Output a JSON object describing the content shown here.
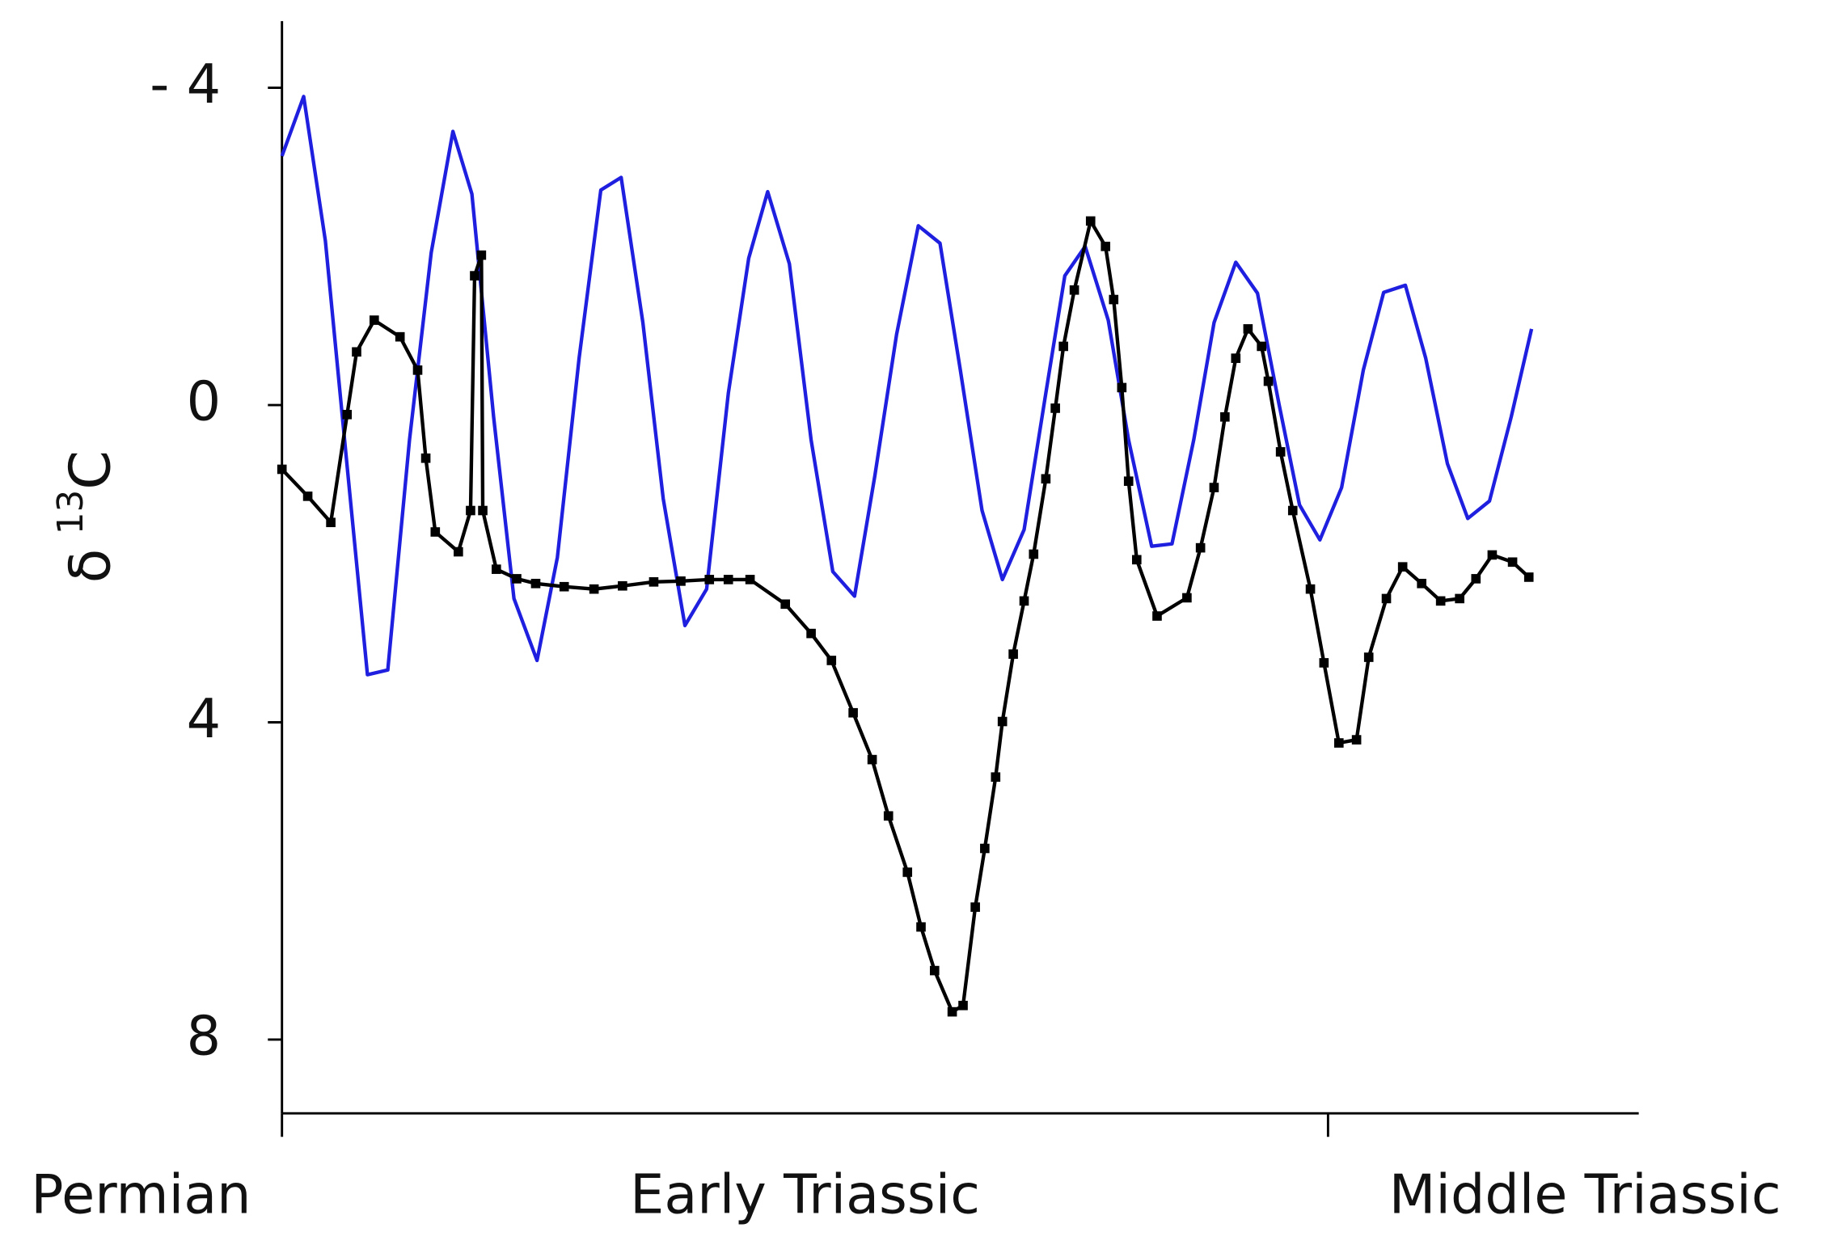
{
  "chart_data": {
    "type": "line",
    "ylabel_parts": [
      "δ",
      "13",
      "C"
    ],
    "x_labels": [
      "Permian",
      "Early Triassic",
      "Middle Triassic"
    ],
    "boundaries": [
      0,
      77.1
    ],
    "xlim": [
      0,
      100
    ],
    "ylim": [
      8.93,
      -4.84
    ],
    "yticks": [
      {
        "value": -4,
        "label": "- 4"
      },
      0,
      4,
      8
    ],
    "series": [
      {
        "color": "#1f1fe0",
        "marker": "none",
        "x": [
          0,
          1.6,
          3.2,
          4.7,
          6.3,
          7.8,
          9.4,
          11.0,
          12.6,
          14.0,
          15.6,
          17.1,
          18.8,
          20.3,
          21.9,
          23.5,
          25.0,
          26.6,
          28.1,
          29.7,
          31.3,
          32.9,
          34.4,
          35.8,
          37.4,
          39.0,
          40.6,
          42.2,
          43.7,
          45.3,
          46.9,
          48.5,
          50.0,
          51.6,
          53.1,
          54.7,
          56.3,
          57.7,
          59.2,
          60.9,
          62.4,
          64.1,
          65.6,
          67.2,
          68.7,
          70.3,
          71.9,
          73.5,
          75.0,
          76.5,
          78.1,
          79.7,
          81.2,
          82.8,
          84.3,
          85.9,
          87.4,
          89.0,
          90.6,
          92.1
        ],
        "values": [
          -3.14,
          -3.89,
          -2.07,
          0.59,
          3.4,
          3.34,
          0.44,
          -1.92,
          -3.45,
          -2.66,
          0.15,
          2.44,
          3.22,
          1.92,
          -0.59,
          -2.71,
          -2.87,
          -1.04,
          1.18,
          2.78,
          2.32,
          -0.15,
          -1.85,
          -2.69,
          -1.78,
          0.44,
          2.1,
          2.41,
          0.89,
          -0.89,
          -2.26,
          -2.04,
          -0.44,
          1.33,
          2.2,
          1.57,
          -0.15,
          -1.63,
          -2.0,
          -1.07,
          0.44,
          1.78,
          1.75,
          0.44,
          -1.04,
          -1.8,
          -1.41,
          0,
          1.26,
          1.7,
          1.04,
          -0.44,
          -1.42,
          -1.51,
          -0.59,
          0.74,
          1.43,
          1.21,
          0.15,
          -0.96
        ]
      },
      {
        "color": "#000000",
        "marker": "square",
        "x": [
          0,
          1.9,
          3.6,
          4.8,
          5.5,
          6.8,
          8.7,
          10.0,
          10.6,
          11.3,
          13.0,
          13.9,
          14.2,
          14.7,
          14.8,
          15.8,
          17.3,
          18.7,
          20.8,
          23.0,
          25.1,
          27.4,
          29.4,
          31.5,
          32.9,
          34.5,
          37.1,
          39.0,
          40.5,
          42.1,
          43.5,
          44.7,
          46.1,
          47.1,
          48.1,
          49.4,
          50.2,
          51.1,
          51.8,
          52.6,
          53.1,
          53.9,
          54.7,
          55.4,
          56.3,
          57.0,
          57.6,
          58.4,
          59.6,
          60.7,
          61.3,
          61.9,
          62.4,
          63.0,
          64.5,
          66.7,
          67.7,
          68.7,
          69.5,
          70.3,
          71.2,
          72.2,
          72.7,
          73.6,
          74.5,
          75.8,
          76.8,
          77.9,
          79.2,
          80.1,
          81.4,
          82.6,
          84.0,
          85.4,
          86.8,
          88.0,
          89.2,
          90.7,
          91.9
        ],
        "values": [
          0.81,
          1.15,
          1.48,
          0.12,
          -0.67,
          -1.07,
          -0.86,
          -0.44,
          0.67,
          1.6,
          1.85,
          1.33,
          -1.63,
          -1.89,
          1.33,
          2.07,
          2.19,
          2.25,
          2.29,
          2.32,
          2.28,
          2.23,
          2.22,
          2.2,
          2.2,
          2.2,
          2.51,
          2.88,
          3.22,
          3.88,
          4.47,
          5.18,
          5.89,
          6.58,
          7.13,
          7.65,
          7.57,
          6.33,
          5.59,
          4.69,
          3.99,
          3.14,
          2.47,
          1.88,
          0.93,
          0.04,
          -0.74,
          -1.45,
          -2.32,
          -2.0,
          -1.33,
          -0.22,
          0.96,
          1.95,
          2.66,
          2.43,
          1.8,
          1.04,
          0.15,
          -0.59,
          -0.96,
          -0.74,
          -0.3,
          0.59,
          1.33,
          2.32,
          3.25,
          4.26,
          4.22,
          3.18,
          2.44,
          2.04,
          2.25,
          2.47,
          2.44,
          2.19,
          1.89,
          1.98,
          2.17
        ]
      }
    ]
  }
}
